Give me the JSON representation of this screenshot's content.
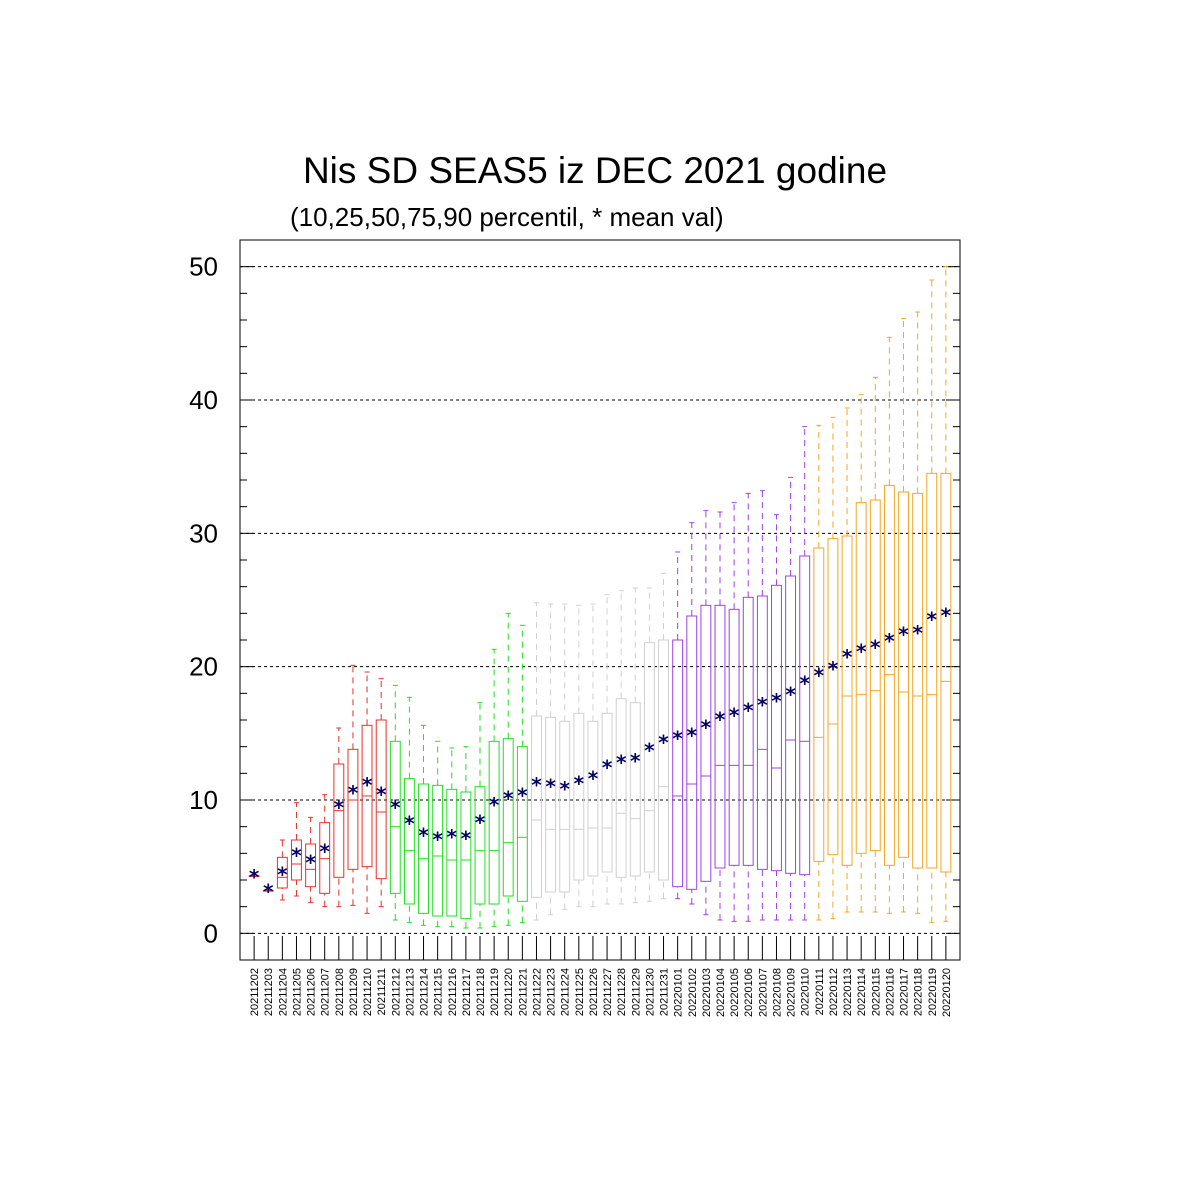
{
  "chart_data": {
    "type": "boxplot",
    "title": "Nis SD SEAS5 iz DEC 2021 godine",
    "subtitle": "(10,25,50,75,90 percentil, * mean val)",
    "xlabel": "",
    "ylabel": "",
    "ylim": [
      -2,
      52
    ],
    "yticks": [
      0,
      10,
      20,
      30,
      40,
      50
    ],
    "grid": "horizontal-dashed",
    "month_colors": {
      "202112a": "#e8322a",
      "202112b": "#22e022",
      "202112c": "#d0d0d0",
      "202201a": "#a040e8",
      "202201b": "#f5a623"
    },
    "mean_marker_color": "#000066",
    "categories": [
      "20211202",
      "20211203",
      "20211204",
      "20211205",
      "20211206",
      "20211207",
      "20211208",
      "20211209",
      "20211210",
      "20211211",
      "20211212",
      "20211213",
      "20211214",
      "20211215",
      "20211216",
      "20211217",
      "20211218",
      "20211219",
      "20211220",
      "20211221",
      "20211222",
      "20211223",
      "20211224",
      "20211225",
      "20211226",
      "20211227",
      "20211228",
      "20211229",
      "20211230",
      "20211231",
      "20220101",
      "20220102",
      "20220103",
      "20220104",
      "20220105",
      "20220106",
      "20220107",
      "20220108",
      "20220109",
      "20220110",
      "20220111",
      "20220112",
      "20220113",
      "20220114",
      "20220115",
      "20220116",
      "20220117",
      "20220118",
      "20220119",
      "20220120"
    ],
    "groups": [
      "202112a",
      "202112a",
      "202112a",
      "202112a",
      "202112a",
      "202112a",
      "202112a",
      "202112a",
      "202112a",
      "202112a",
      "202112b",
      "202112b",
      "202112b",
      "202112b",
      "202112b",
      "202112b",
      "202112b",
      "202112b",
      "202112b",
      "202112b",
      "202112c",
      "202112c",
      "202112c",
      "202112c",
      "202112c",
      "202112c",
      "202112c",
      "202112c",
      "202112c",
      "202112c",
      "202201a",
      "202201a",
      "202201a",
      "202201a",
      "202201a",
      "202201a",
      "202201a",
      "202201a",
      "202201a",
      "202201a",
      "202201b",
      "202201b",
      "202201b",
      "202201b",
      "202201b",
      "202201b",
      "202201b",
      "202201b",
      "202201b",
      "202201b"
    ],
    "p10": [
      4.3,
      3.2,
      2.5,
      2.8,
      2.3,
      2.0,
      2.0,
      2.1,
      1.5,
      2.0,
      1.0,
      0.8,
      0.6,
      0.5,
      0.5,
      0.4,
      0.4,
      0.5,
      0.6,
      0.8,
      1.0,
      1.4,
      1.8,
      2.0,
      2.0,
      2.2,
      2.2,
      2.3,
      2.4,
      2.6,
      2.6,
      2.2,
      1.4,
      1.0,
      0.9,
      0.9,
      1.0,
      1.0,
      1.0,
      1.0,
      1.0,
      1.1,
      1.6,
      1.6,
      1.6,
      1.5,
      1.6,
      1.5,
      0.8,
      0.9
    ],
    "p25": [
      4.3,
      3.2,
      3.4,
      4.0,
      3.5,
      3.0,
      4.2,
      4.8,
      5.0,
      4.1,
      3.0,
      2.2,
      1.5,
      1.3,
      1.3,
      1.1,
      2.2,
      2.2,
      2.8,
      2.4,
      2.7,
      3.1,
      3.1,
      4.0,
      4.3,
      4.6,
      4.2,
      4.3,
      4.6,
      4.0,
      3.5,
      3.3,
      3.9,
      4.9,
      5.1,
      5.1,
      4.8,
      4.7,
      4.5,
      4.4,
      5.4,
      5.9,
      5.1,
      6.0,
      6.2,
      5.1,
      5.7,
      4.9,
      4.9,
      4.6
    ],
    "p50": [
      4.3,
      3.2,
      4.2,
      5.2,
      4.8,
      5.6,
      9.2,
      10.0,
      10.3,
      9.1,
      8.0,
      6.2,
      5.6,
      5.8,
      5.5,
      5.5,
      6.2,
      6.2,
      6.8,
      7.2,
      8.5,
      7.8,
      7.8,
      7.8,
      7.9,
      7.9,
      9.0,
      8.6,
      9.2,
      11.0,
      10.3,
      11.2,
      11.8,
      12.6,
      12.6,
      12.6,
      13.8,
      12.4,
      14.5,
      14.4,
      14.7,
      15.7,
      17.8,
      17.9,
      18.2,
      19.4,
      18.1,
      17.8,
      17.9,
      18.9
    ],
    "p75": [
      4.3,
      3.2,
      5.7,
      7.0,
      6.7,
      8.3,
      12.7,
      13.8,
      15.6,
      16.0,
      14.4,
      11.6,
      11.2,
      11.1,
      10.8,
      10.6,
      11.0,
      14.4,
      14.6,
      14.0,
      16.3,
      16.2,
      15.9,
      16.5,
      15.9,
      16.5,
      17.6,
      17.3,
      21.8,
      22.0,
      22.0,
      23.8,
      24.6,
      24.6,
      24.3,
      25.2,
      25.3,
      26.1,
      26.8,
      28.3,
      28.9,
      29.6,
      29.8,
      32.3,
      32.5,
      33.6,
      33.1,
      33.0,
      34.5,
      34.5
    ],
    "p90": [
      4.3,
      3.2,
      7.0,
      9.8,
      8.7,
      10.4,
      15.4,
      20.1,
      19.6,
      19.1,
      18.6,
      17.7,
      15.6,
      14.4,
      13.9,
      14.0,
      17.3,
      21.3,
      24.0,
      23.1,
      24.8,
      24.7,
      24.7,
      24.6,
      24.7,
      25.4,
      25.7,
      25.9,
      25.9,
      27.0,
      28.6,
      30.8,
      31.7,
      31.6,
      32.3,
      33.0,
      33.2,
      31.4,
      34.2,
      38.0,
      38.1,
      38.7,
      39.4,
      40.4,
      41.7,
      44.7,
      46.1,
      46.6,
      49.0,
      50.0
    ],
    "mean": [
      4.3,
      3.2,
      4.5,
      5.9,
      5.4,
      6.2,
      9.5,
      10.6,
      11.2,
      10.5,
      9.5,
      8.3,
      7.4,
      7.1,
      7.3,
      7.2,
      8.4,
      9.7,
      10.2,
      10.4,
      11.2,
      11.1,
      10.9,
      11.3,
      11.7,
      12.5,
      12.9,
      13.0,
      13.8,
      14.4,
      14.7,
      14.9,
      15.5,
      16.1,
      16.4,
      16.8,
      17.2,
      17.5,
      18.0,
      18.8,
      19.4,
      19.9,
      20.8,
      21.2,
      21.5,
      22.0,
      22.5,
      22.6,
      23.6,
      23.9
    ]
  }
}
